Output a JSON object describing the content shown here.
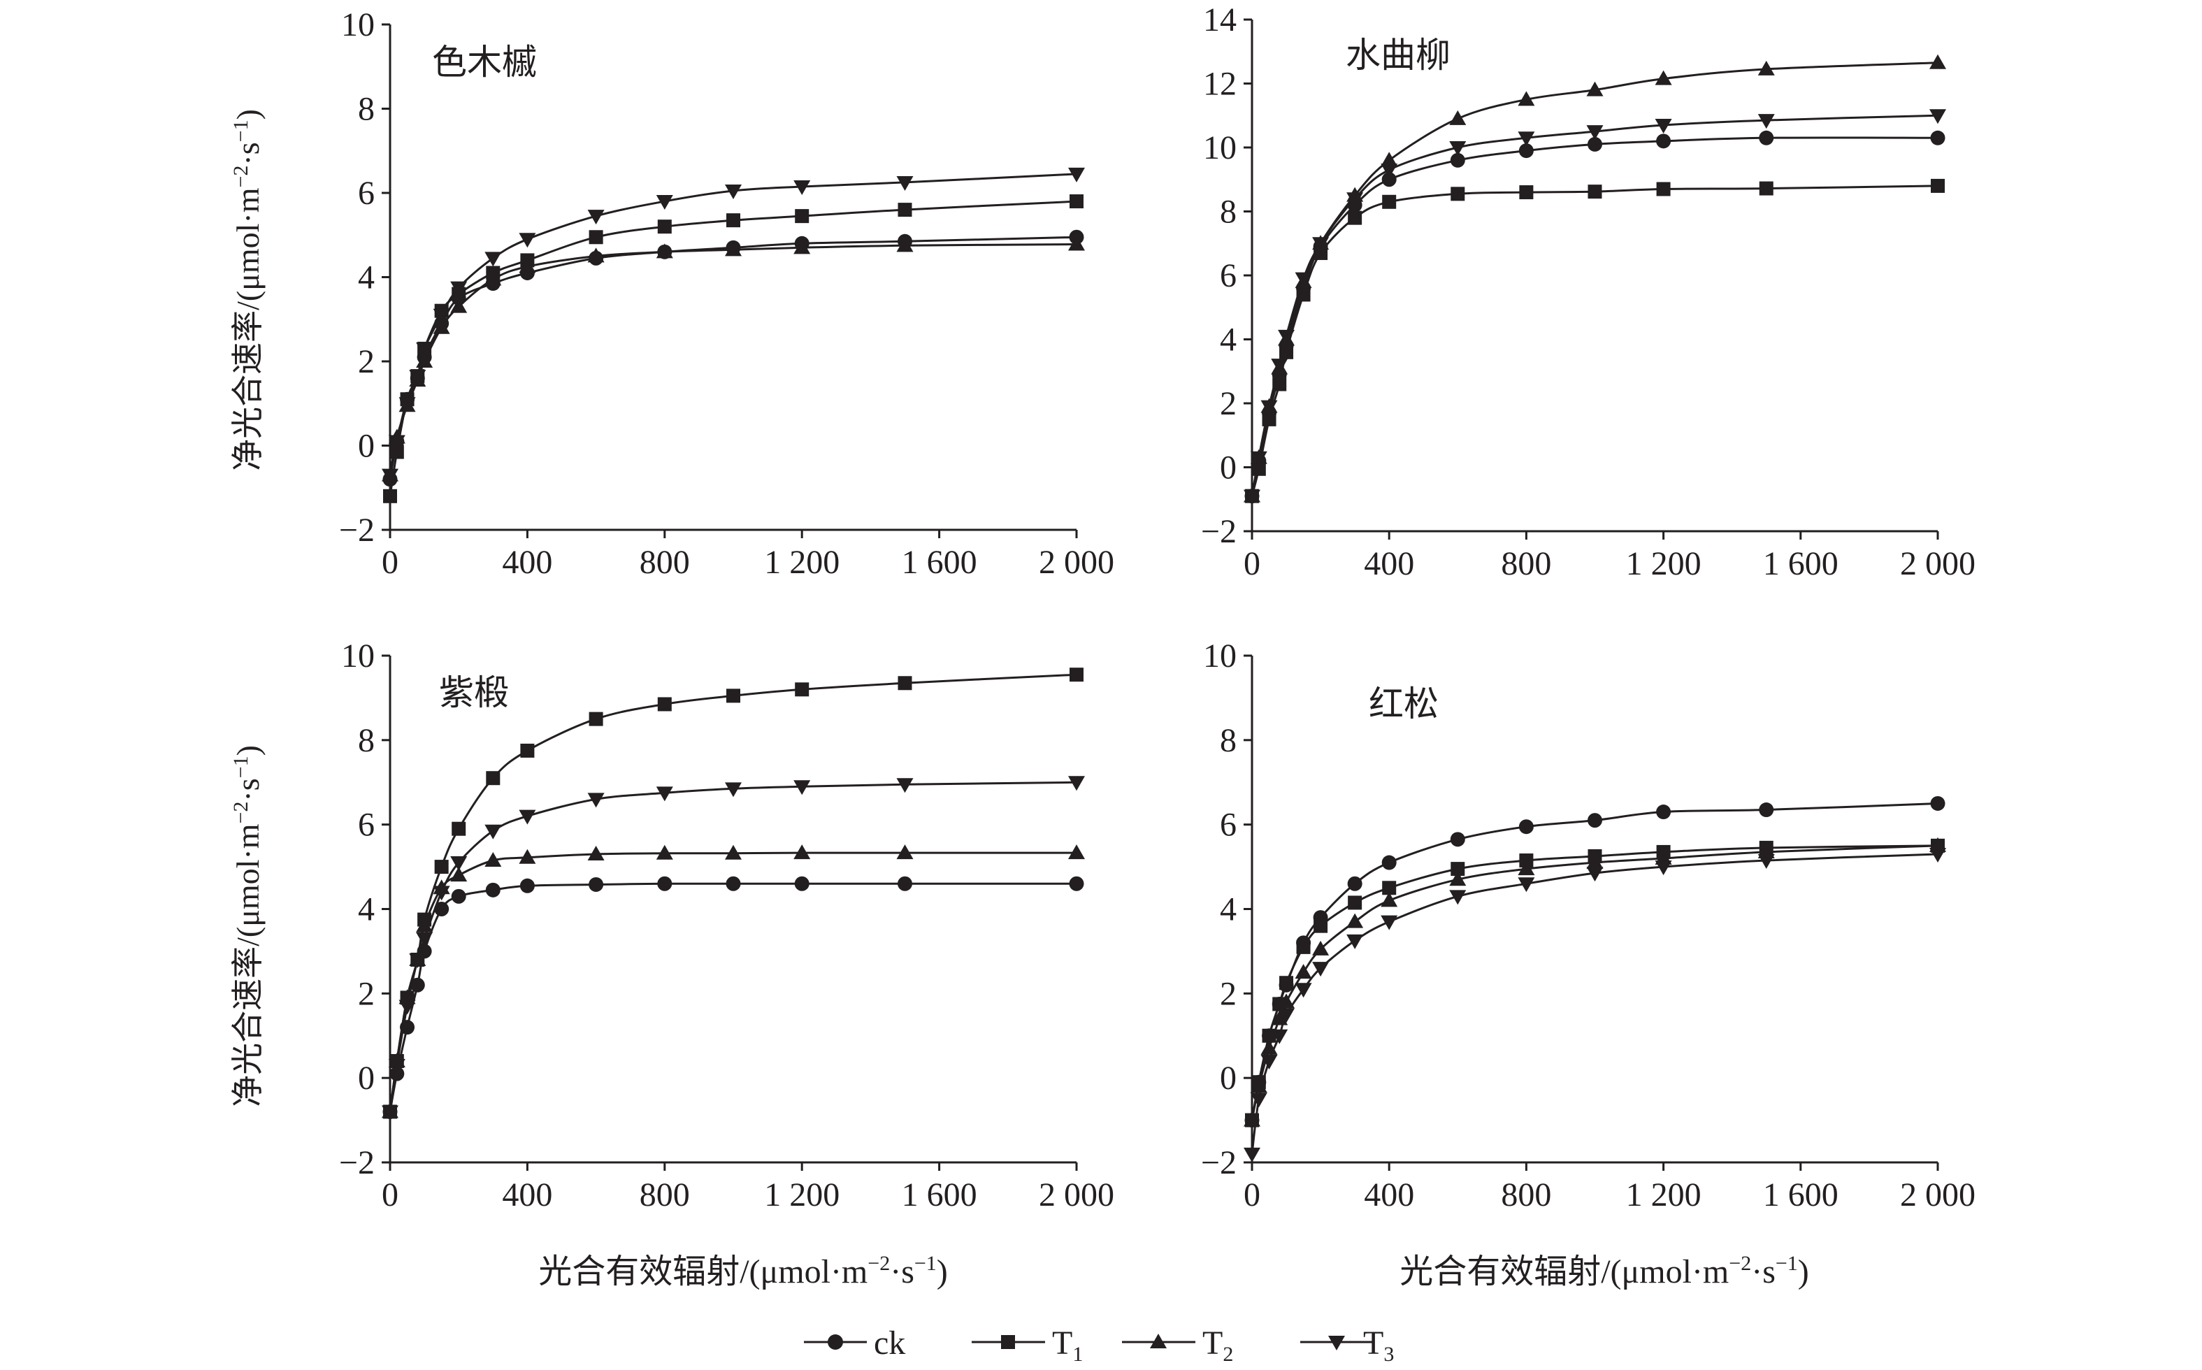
{
  "figure": {
    "legend_position": "bottom-center"
  },
  "legend_items": [
    {
      "label": "ck",
      "subscript": "",
      "marker": "circle"
    },
    {
      "label": "T",
      "subscript": "1",
      "marker": "square"
    },
    {
      "label": "T",
      "subscript": "2",
      "marker": "triangle-up"
    },
    {
      "label": "T",
      "subscript": "3",
      "marker": "triangle-down"
    }
  ],
  "ylabel": {
    "main": "净光合速率/(μmol·m",
    "sup1": "−2",
    "mid": "·s",
    "sup2": "−1",
    "end": ")"
  },
  "xlabel": {
    "main": "光合有效辐射/(μmol·m",
    "sup1": "−2",
    "mid": "·s",
    "sup2": "−1",
    "end": ")"
  },
  "chart_data": [
    {
      "type": "line",
      "title": "色木槭",
      "xlim": [
        0,
        2000
      ],
      "ylim": [
        -2,
        10
      ],
      "x_ticks": [
        0,
        400,
        800,
        1200,
        1600,
        2000
      ],
      "x_tick_labels": [
        "0",
        "400",
        "800",
        "1 200",
        "1 600",
        "2 000"
      ],
      "y_ticks": [
        -2,
        0,
        2,
        4,
        6,
        8,
        10
      ],
      "y_tick_labels": [
        "−2",
        "0",
        "2",
        "4",
        "6",
        "8",
        "10"
      ],
      "grid": false,
      "x": [
        0,
        20,
        50,
        80,
        100,
        150,
        200,
        300,
        400,
        600,
        800,
        1000,
        1200,
        1500,
        2000
      ],
      "series": [
        {
          "name": "ck",
          "marker": "circle",
          "values": [
            -0.8,
            0.1,
            1.1,
            1.6,
            2.1,
            2.9,
            3.5,
            3.85,
            4.1,
            4.45,
            4.6,
            4.7,
            4.8,
            4.85,
            4.95
          ]
        },
        {
          "name": "T1",
          "marker": "square",
          "values": [
            -1.2,
            -0.15,
            1.1,
            1.65,
            2.3,
            3.2,
            3.6,
            4.1,
            4.4,
            4.95,
            5.2,
            5.35,
            5.45,
            5.6,
            5.8
          ]
        },
        {
          "name": "T2",
          "marker": "triangle-up",
          "values": [
            -0.7,
            0.2,
            0.95,
            1.55,
            2.0,
            2.8,
            3.3,
            3.95,
            4.25,
            4.5,
            4.6,
            4.65,
            4.7,
            4.75,
            4.78
          ]
        },
        {
          "name": "T3",
          "marker": "triangle-down",
          "values": [
            -0.7,
            0.1,
            1.0,
            1.65,
            2.3,
            3.1,
            3.75,
            4.45,
            4.9,
            5.45,
            5.8,
            6.05,
            6.15,
            6.25,
            6.45
          ]
        }
      ]
    },
    {
      "type": "line",
      "title": "水曲柳",
      "xlim": [
        0,
        2000
      ],
      "ylim": [
        -2,
        14
      ],
      "x_ticks": [
        0,
        400,
        800,
        1200,
        1600,
        2000
      ],
      "x_tick_labels": [
        "0",
        "400",
        "800",
        "1 200",
        "1 600",
        "2 000"
      ],
      "y_ticks": [
        -2,
        0,
        2,
        4,
        6,
        8,
        10,
        12,
        14
      ],
      "y_tick_labels": [
        "−2",
        "0",
        "2",
        "4",
        "6",
        "8",
        "10",
        "12",
        "14"
      ],
      "grid": false,
      "x": [
        0,
        20,
        50,
        80,
        100,
        150,
        200,
        300,
        400,
        600,
        800,
        1000,
        1200,
        1500,
        2000
      ],
      "series": [
        {
          "name": "ck",
          "marker": "circle",
          "values": [
            -0.9,
            0.2,
            1.7,
            2.9,
            3.8,
            5.6,
            6.9,
            8.2,
            9.0,
            9.6,
            9.9,
            10.1,
            10.2,
            10.3,
            10.3
          ]
        },
        {
          "name": "T1",
          "marker": "square",
          "values": [
            -0.9,
            -0.05,
            1.5,
            2.6,
            3.6,
            5.4,
            6.7,
            7.8,
            8.3,
            8.55,
            8.6,
            8.62,
            8.7,
            8.72,
            8.8
          ]
        },
        {
          "name": "T2",
          "marker": "triangle-up",
          "values": [
            -0.9,
            0.3,
            1.9,
            3.1,
            4.0,
            5.8,
            7.0,
            8.5,
            9.6,
            10.9,
            11.5,
            11.8,
            12.15,
            12.45,
            12.65
          ]
        },
        {
          "name": "T3",
          "marker": "triangle-down",
          "values": [
            -0.9,
            0.3,
            1.9,
            3.2,
            4.1,
            5.9,
            7.0,
            8.4,
            9.3,
            10.0,
            10.3,
            10.5,
            10.7,
            10.85,
            11.0
          ]
        }
      ]
    },
    {
      "type": "line",
      "title": "紫椴",
      "xlim": [
        0,
        2000
      ],
      "ylim": [
        -2,
        10
      ],
      "x_ticks": [
        0,
        400,
        800,
        1200,
        1600,
        2000
      ],
      "x_tick_labels": [
        "0",
        "400",
        "800",
        "1 200",
        "1 600",
        "2 000"
      ],
      "y_ticks": [
        -2,
        0,
        2,
        4,
        6,
        8,
        10
      ],
      "y_tick_labels": [
        "−2",
        "0",
        "2",
        "4",
        "6",
        "8",
        "10"
      ],
      "grid": false,
      "x": [
        0,
        20,
        50,
        80,
        100,
        150,
        200,
        300,
        400,
        600,
        800,
        1000,
        1200,
        1500,
        2000
      ],
      "series": [
        {
          "name": "ck",
          "marker": "circle",
          "values": [
            -0.8,
            0.1,
            1.2,
            2.2,
            3.0,
            4.0,
            4.3,
            4.45,
            4.55,
            4.58,
            4.6,
            4.6,
            4.6,
            4.6,
            4.6
          ]
        },
        {
          "name": "T1",
          "marker": "square",
          "values": [
            -0.8,
            0.4,
            1.9,
            2.8,
            3.75,
            5.0,
            5.9,
            7.1,
            7.75,
            8.5,
            8.85,
            9.05,
            9.2,
            9.35,
            9.55
          ]
        },
        {
          "name": "T2",
          "marker": "triangle-up",
          "values": [
            -0.8,
            0.4,
            1.9,
            2.8,
            3.6,
            4.5,
            4.8,
            5.15,
            5.22,
            5.3,
            5.32,
            5.32,
            5.33,
            5.33,
            5.33
          ]
        },
        {
          "name": "T3",
          "marker": "triangle-down",
          "values": [
            -0.8,
            0.3,
            1.7,
            2.8,
            3.3,
            4.4,
            5.1,
            5.85,
            6.2,
            6.6,
            6.75,
            6.85,
            6.9,
            6.95,
            7.0
          ]
        }
      ]
    },
    {
      "type": "line",
      "title": "红松",
      "xlim": [
        0,
        2000
      ],
      "ylim": [
        -2,
        10
      ],
      "x_ticks": [
        0,
        400,
        800,
        1200,
        1600,
        2000
      ],
      "x_tick_labels": [
        "0",
        "400",
        "800",
        "1 200",
        "1 600",
        "2 000"
      ],
      "y_ticks": [
        -2,
        0,
        2,
        4,
        6,
        8,
        10
      ],
      "y_tick_labels": [
        "−2",
        "0",
        "2",
        "4",
        "6",
        "8",
        "10"
      ],
      "grid": false,
      "x": [
        0,
        20,
        50,
        80,
        100,
        150,
        200,
        300,
        400,
        600,
        800,
        1000,
        1200,
        1500,
        2000
      ],
      "series": [
        {
          "name": "ck",
          "marker": "circle",
          "values": [
            -1.0,
            -0.1,
            1.0,
            1.75,
            2.2,
            3.2,
            3.8,
            4.6,
            5.1,
            5.65,
            5.95,
            6.1,
            6.3,
            6.35,
            6.5
          ]
        },
        {
          "name": "T1",
          "marker": "square",
          "values": [
            -1.0,
            -0.1,
            1.0,
            1.75,
            2.25,
            3.1,
            3.6,
            4.15,
            4.5,
            4.95,
            5.15,
            5.25,
            5.35,
            5.45,
            5.5
          ]
        },
        {
          "name": "T2",
          "marker": "triangle-up",
          "values": [
            -1.0,
            -0.2,
            0.7,
            1.4,
            1.8,
            2.5,
            3.05,
            3.7,
            4.2,
            4.7,
            4.95,
            5.1,
            5.2,
            5.35,
            5.5
          ]
        },
        {
          "name": "T3",
          "marker": "triangle-down",
          "values": [
            -1.8,
            -0.5,
            0.4,
            1.0,
            1.5,
            2.1,
            2.6,
            3.25,
            3.7,
            4.3,
            4.6,
            4.85,
            5.0,
            5.15,
            5.3
          ]
        }
      ]
    }
  ]
}
